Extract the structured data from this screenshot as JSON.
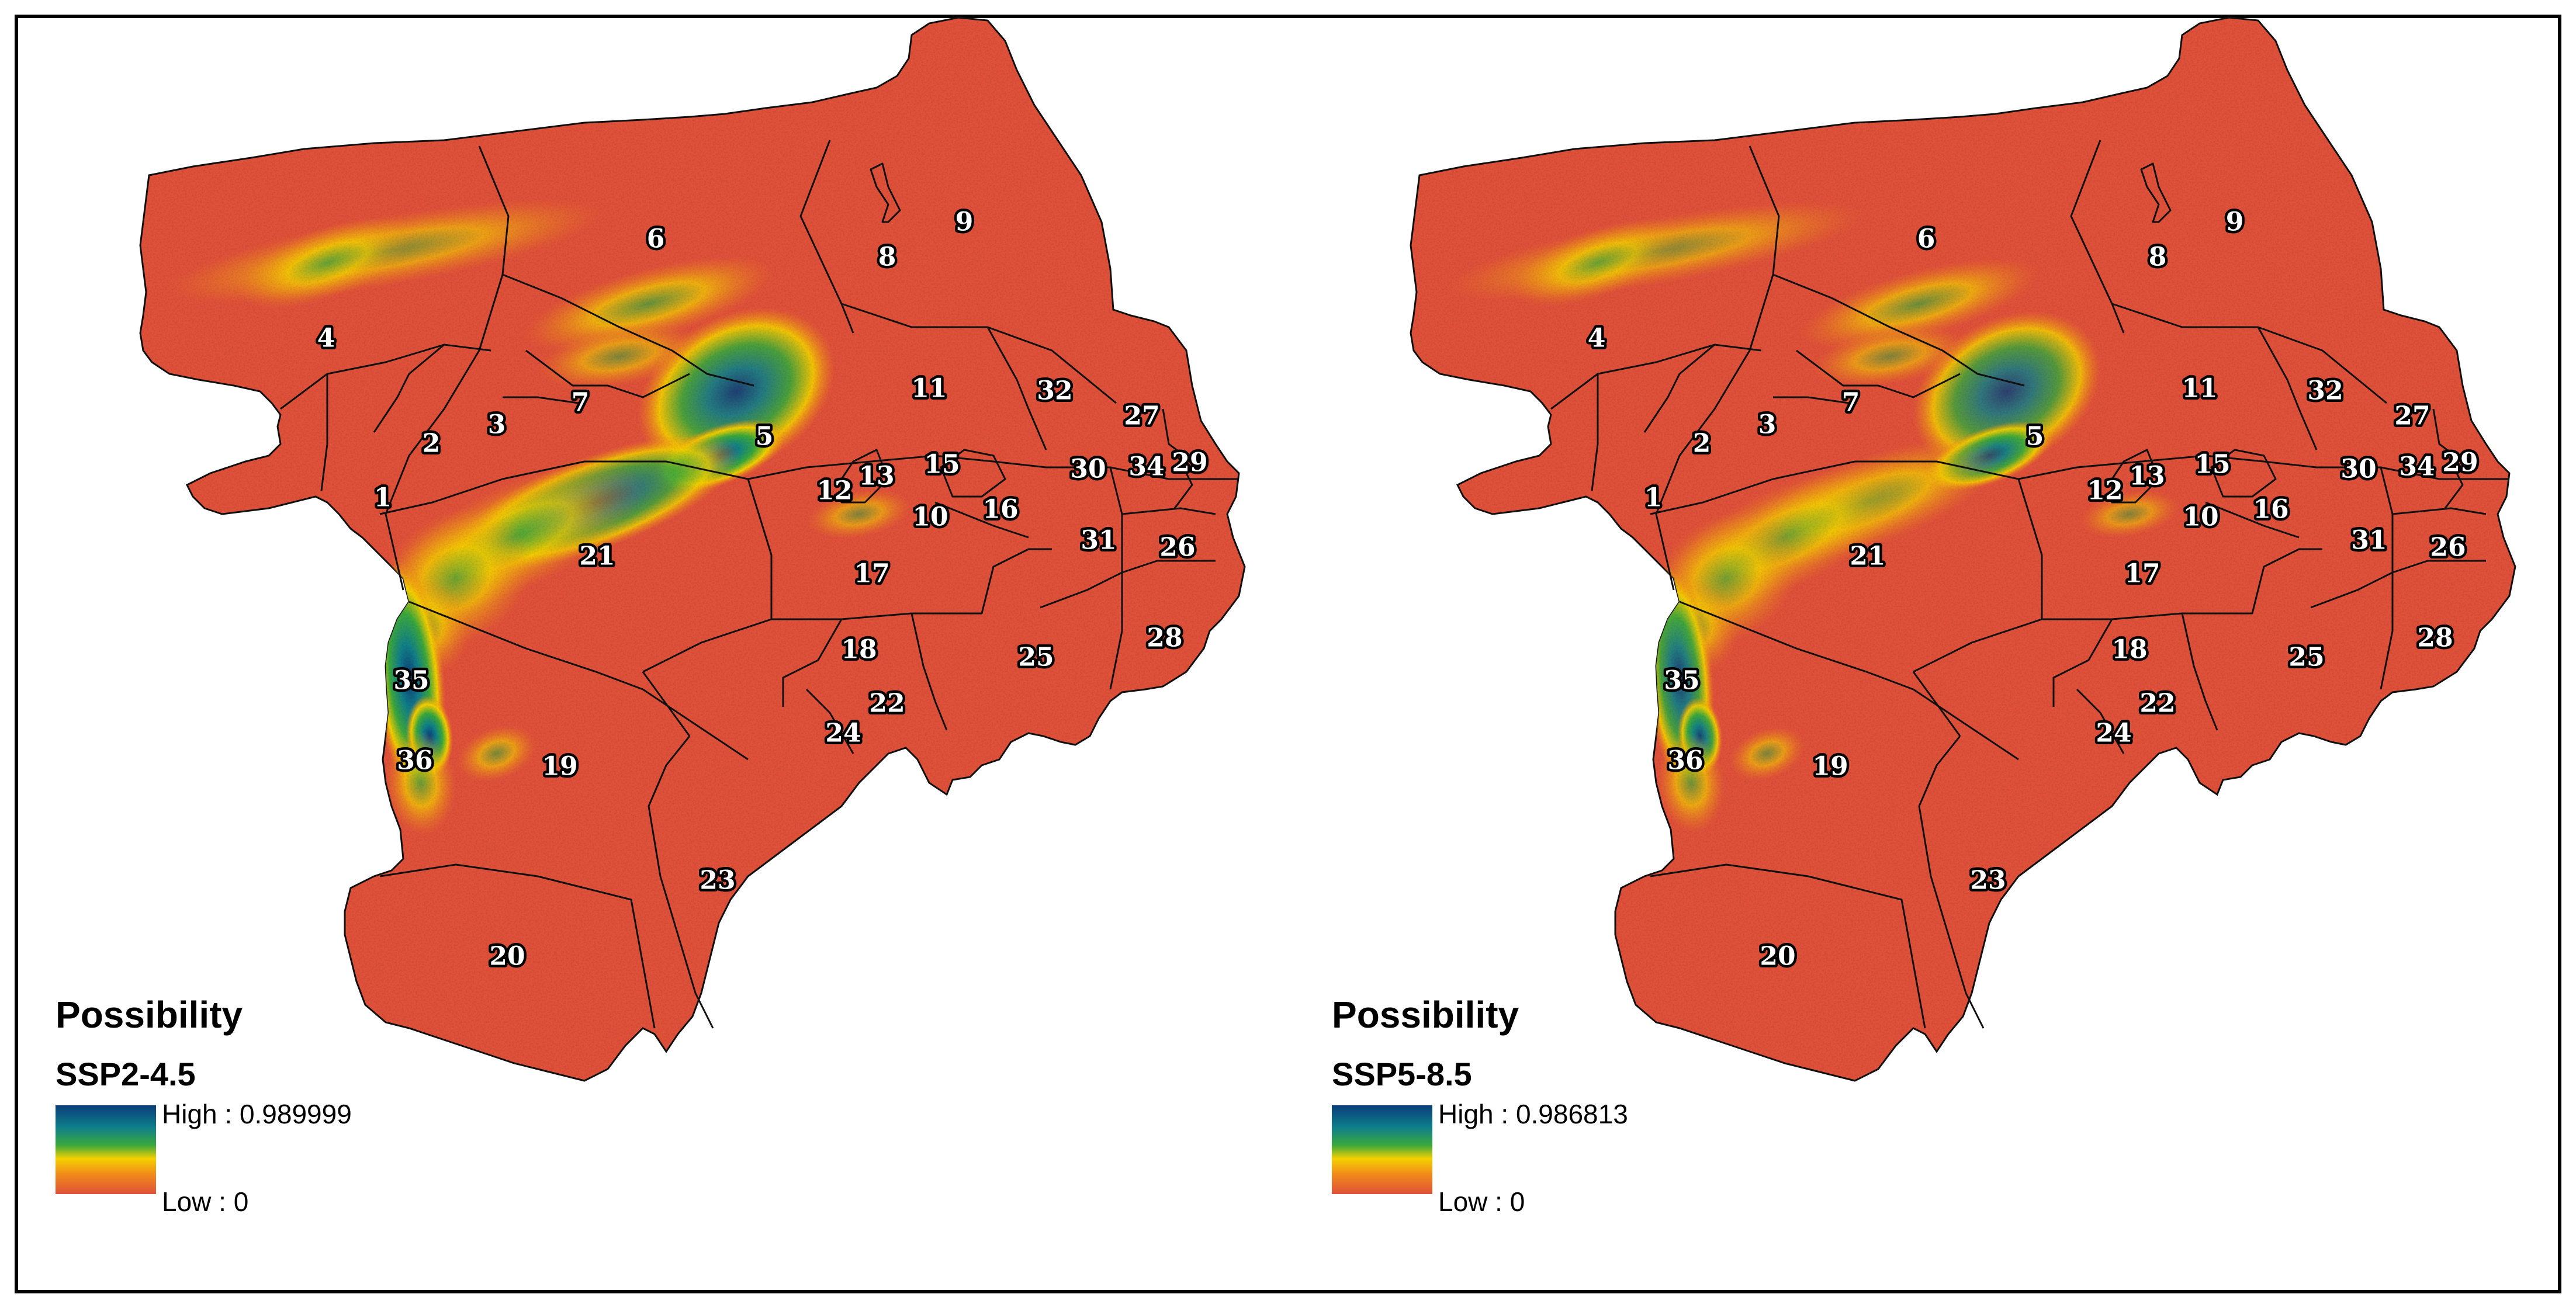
{
  "figure": {
    "background": "#ffffff",
    "frame_color": "#000000"
  },
  "colors": {
    "low": "#e0513a",
    "orange": "#f08a1a",
    "yellow": "#f5d000",
    "green": "#3aa83c",
    "teal": "#0f7f8a",
    "high": "#0a3d7a",
    "boundary": "#111111"
  },
  "region_ids": [
    "1",
    "2",
    "3",
    "4",
    "5",
    "6",
    "7",
    "8",
    "9",
    "10",
    "11",
    "12",
    "13",
    "15",
    "16",
    "17",
    "18",
    "19",
    "20",
    "21",
    "22",
    "23",
    "24",
    "25",
    "26",
    "27",
    "28",
    "29",
    "30",
    "31",
    "32",
    "34",
    "35",
    "36"
  ],
  "panels": [
    {
      "legend": {
        "title": "Possibility",
        "scenario": "SSP2-4.5",
        "high_label": "High : 0.989999",
        "low_label": "Low : 0"
      }
    },
    {
      "legend": {
        "title": "Possibility",
        "scenario": "SSP5-8.5",
        "high_label": "High : 0.986813",
        "low_label": "Low : 0"
      }
    }
  ]
}
